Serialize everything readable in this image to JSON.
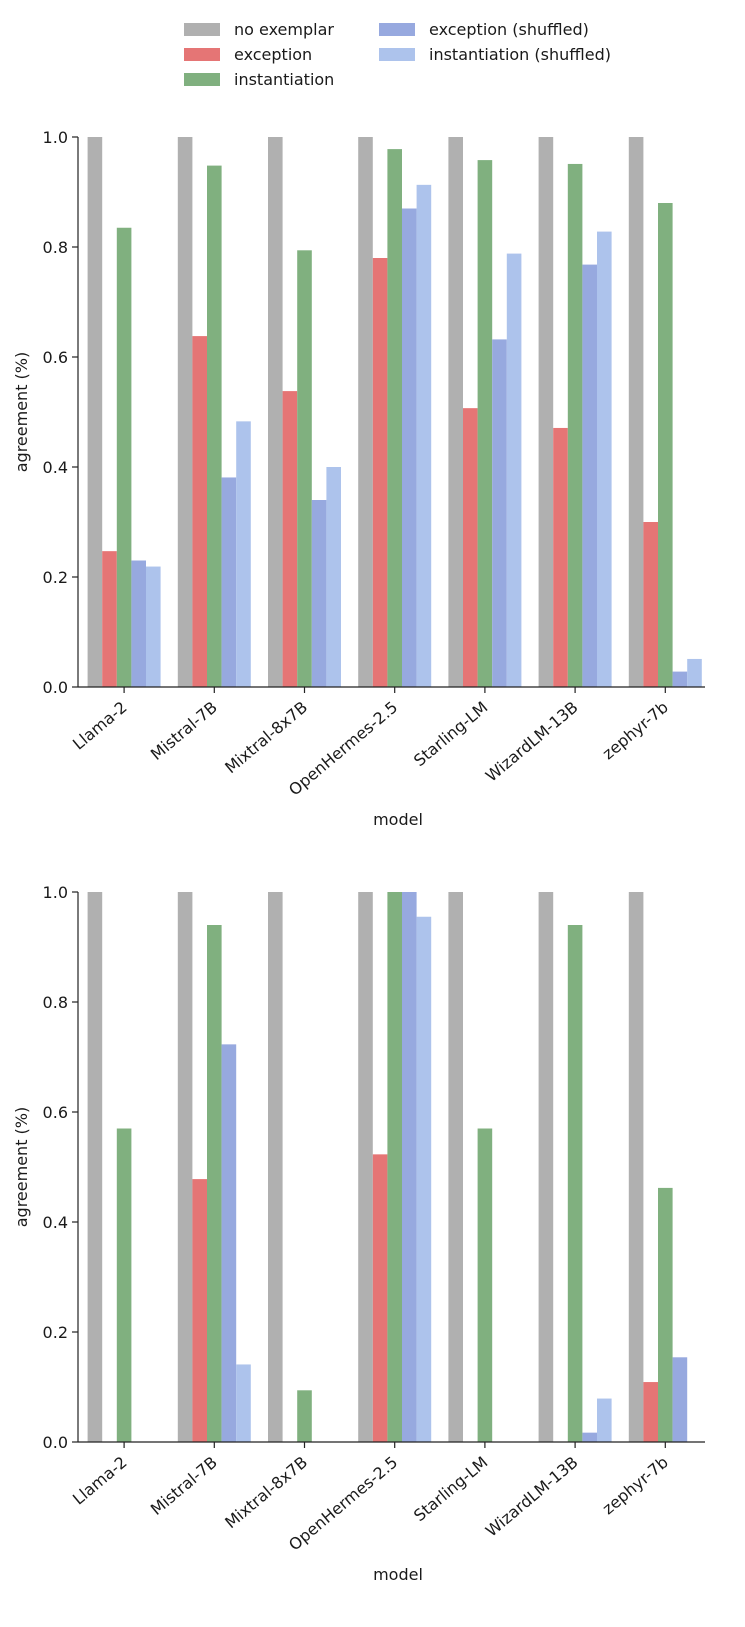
{
  "colors": {
    "no exemplar": "#b0b0b0",
    "exception": "#e57575",
    "instantiation": "#80b07f",
    "exception (shuffled)": "#97a9df",
    "instantiation (shuffled)": "#adc3ec"
  },
  "legend": {
    "placement": "top-center",
    "entries": [
      "no exemplar",
      "exception",
      "instantiation",
      "exception (shuffled)",
      "instantiation (shuffled)"
    ]
  },
  "chart_data": [
    {
      "type": "bar",
      "xlabel": "model",
      "ylabel": "agreement (%)",
      "ylim": [
        0,
        1.0
      ],
      "yticks": [
        "0.0",
        "0.2",
        "0.4",
        "0.6",
        "0.8",
        "1.0"
      ],
      "grid": false,
      "categories": [
        "Llama-2",
        "Mistral-7B",
        "Mixtral-8x7B",
        "OpenHermes-2.5",
        "Starling-LM",
        "WizardLM-13B",
        "zephyr-7b"
      ],
      "series": [
        {
          "name": "no exemplar",
          "values": [
            1.0,
            1.0,
            1.0,
            1.0,
            1.0,
            1.0,
            1.0
          ]
        },
        {
          "name": "exception",
          "values": [
            0.247,
            0.638,
            0.538,
            0.78,
            0.507,
            0.471,
            0.3
          ]
        },
        {
          "name": "instantiation",
          "values": [
            0.835,
            0.948,
            0.794,
            0.978,
            0.958,
            0.951,
            0.88
          ]
        },
        {
          "name": "exception (shuffled)",
          "values": [
            0.23,
            0.381,
            0.34,
            0.87,
            0.632,
            0.768,
            0.028
          ]
        },
        {
          "name": "instantiation (shuffled)",
          "values": [
            0.219,
            0.483,
            0.4,
            0.913,
            0.788,
            0.828,
            0.051
          ]
        }
      ]
    },
    {
      "type": "bar",
      "xlabel": "model",
      "ylabel": "agreement (%)",
      "ylim": [
        0,
        1.0
      ],
      "yticks": [
        "0.0",
        "0.2",
        "0.4",
        "0.6",
        "0.8",
        "1.0"
      ],
      "grid": false,
      "categories": [
        "Llama-2",
        "Mistral-7B",
        "Mixtral-8x7B",
        "OpenHermes-2.5",
        "Starling-LM",
        "WizardLM-13B",
        "zephyr-7b"
      ],
      "series": [
        {
          "name": "no exemplar",
          "values": [
            1.0,
            1.0,
            1.0,
            1.0,
            1.0,
            1.0,
            1.0
          ]
        },
        {
          "name": "exception",
          "values": [
            0.0,
            0.478,
            0.0,
            0.523,
            0.0,
            0.0,
            0.109
          ]
        },
        {
          "name": "instantiation",
          "values": [
            0.57,
            0.94,
            0.094,
            1.0,
            0.57,
            0.94,
            0.462
          ]
        },
        {
          "name": "exception (shuffled)",
          "values": [
            0.0,
            0.723,
            0.0,
            1.0,
            0.0,
            0.017,
            0.154
          ]
        },
        {
          "name": "instantiation (shuffled)",
          "values": [
            0.0,
            0.141,
            0.0,
            0.955,
            0.0,
            0.079,
            0.0
          ]
        }
      ]
    }
  ]
}
